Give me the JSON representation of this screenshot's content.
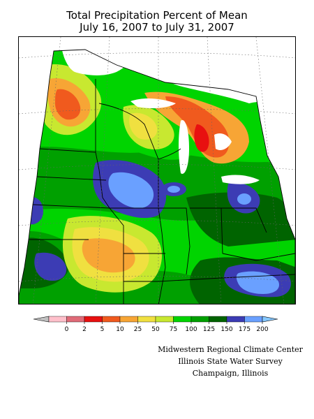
{
  "title": {
    "line1": "Total Precipitation Percent of Mean",
    "line2": "July 16, 2007 to July 31, 2007"
  },
  "legend": {
    "labels": [
      "0",
      "2",
      "5",
      "10",
      "25",
      "50",
      "75",
      "100",
      "125",
      "150",
      "175",
      "200"
    ],
    "colors": [
      "#ffc0cb",
      "#e06b78",
      "#e81010",
      "#f05a1e",
      "#f7a535",
      "#f0e040",
      "#c8e830",
      "#00d400",
      "#00a000",
      "#006400",
      "#3c3cb4",
      "#6aa0ff"
    ],
    "under_color": "#c0c0c0",
    "over_color": "#86c8ff"
  },
  "credits": {
    "line1": "Midwestern Regional Climate Center",
    "line2": "Illinois State Water Survey",
    "line3": "Champaign, Illinois"
  },
  "map": {
    "region": "Midwestern United States",
    "background_green": "#00d400",
    "no_data_color": "#ffffff"
  }
}
